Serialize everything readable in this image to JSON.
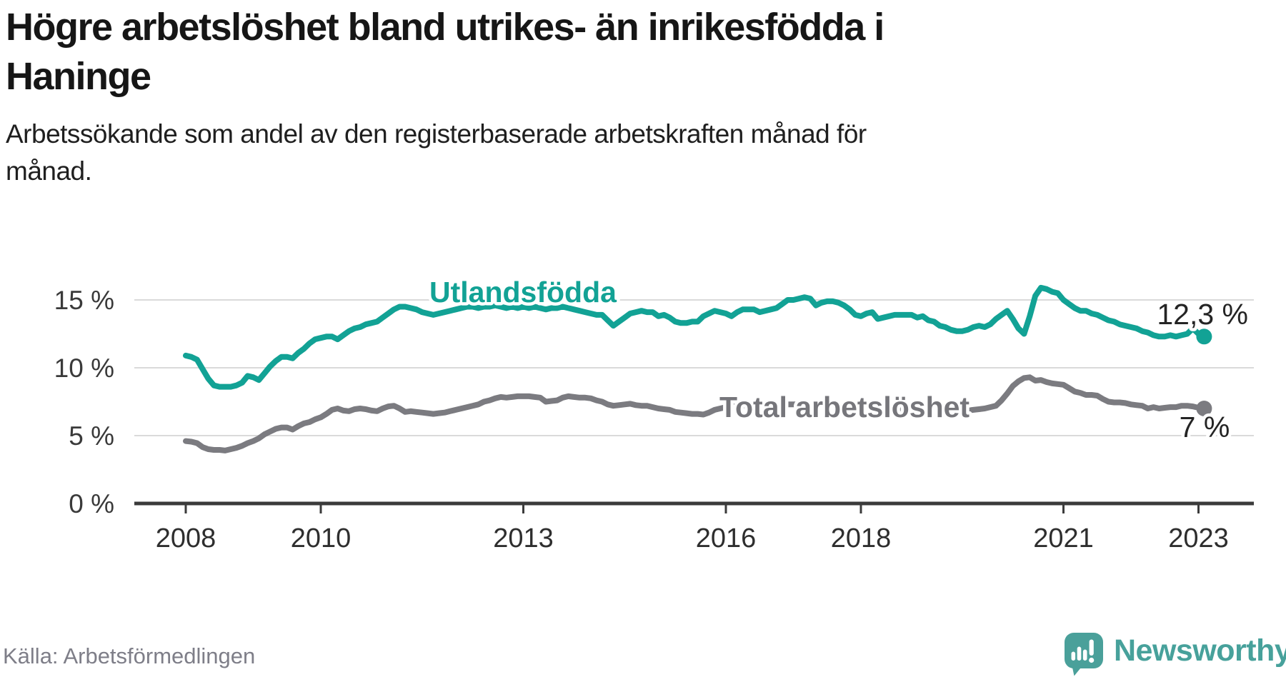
{
  "title": {
    "lines": [
      "Högre arbetslöshet bland utrikes- än inrikesfödda i",
      "Haninge"
    ]
  },
  "subtitle": {
    "lines": [
      "Arbetssökande som andel av den registerbaserade arbetskraften månad för",
      "månad."
    ]
  },
  "source": {
    "text": "Källa: Arbetsförmedlingen"
  },
  "logo": {
    "text": "Newsworthy",
    "icon": "newsworthy-speech-bubble-bar-chart-icon",
    "icon_color": "#4AA09A",
    "text_color": "#47A19B"
  },
  "colors": {
    "background": "#FFFFFF",
    "grid": "#DADADA",
    "axis": "#3B3B3B",
    "tick_text": "#2E2E2E",
    "value_label": "#242424",
    "teal": "#12A295",
    "gray": "#7B7B80",
    "source_text": "#7E7E88"
  },
  "chart_data": {
    "type": "line",
    "title": "Högre arbetslöshet bland utrikes- än inrikesfödda i Haninge",
    "subtitle": "Arbetssökande som andel av den registerbaserade arbetskraften månad för månad.",
    "unit": "%",
    "x_start_year": 2008,
    "x_step_months": 1,
    "grid": true,
    "legend_position": "inline-labels",
    "x_axis": {
      "ticks": [
        {
          "year": 2008,
          "label": "2008"
        },
        {
          "year": 2010,
          "label": "2010"
        },
        {
          "year": 2013,
          "label": "2013"
        },
        {
          "year": 2016,
          "label": "2016"
        },
        {
          "year": 2018,
          "label": "2018"
        },
        {
          "year": 2021,
          "label": "2021"
        },
        {
          "year": 2023,
          "label": "2023"
        }
      ]
    },
    "y_axis": {
      "ylim": [
        0,
        16.5
      ],
      "ticks": [
        {
          "value": 0,
          "label": "0 %"
        },
        {
          "value": 5,
          "label": "5 %"
        },
        {
          "value": 10,
          "label": "10 %"
        },
        {
          "value": 15,
          "label": "15 %"
        }
      ]
    },
    "series": [
      {
        "name": "Utlandsfödda",
        "color": "#12A295",
        "end_label": "12,3 %",
        "end_value": 12.3,
        "values": [
          10.9,
          10.8,
          10.6,
          9.9,
          9.2,
          8.7,
          8.6,
          8.6,
          8.6,
          8.7,
          8.9,
          9.4,
          9.3,
          9.1,
          9.6,
          10.1,
          10.5,
          10.8,
          10.8,
          10.7,
          11.1,
          11.4,
          11.8,
          12.1,
          12.2,
          12.3,
          12.3,
          12.1,
          12.4,
          12.7,
          12.9,
          13.0,
          13.2,
          13.3,
          13.4,
          13.7,
          14.0,
          14.3,
          14.5,
          14.5,
          14.4,
          14.3,
          14.1,
          14.0,
          13.9,
          14.0,
          14.1,
          14.2,
          14.3,
          14.4,
          14.5,
          14.5,
          14.4,
          14.5,
          14.5,
          14.6,
          14.5,
          14.4,
          14.5,
          14.4,
          14.5,
          14.4,
          14.5,
          14.4,
          14.3,
          14.4,
          14.4,
          14.5,
          14.4,
          14.3,
          14.2,
          14.1,
          14.0,
          13.9,
          13.9,
          13.5,
          13.1,
          13.4,
          13.7,
          14.0,
          14.1,
          14.2,
          14.1,
          14.1,
          13.8,
          13.9,
          13.7,
          13.4,
          13.3,
          13.3,
          13.4,
          13.4,
          13.8,
          14.0,
          14.2,
          14.1,
          14.0,
          13.8,
          14.1,
          14.3,
          14.3,
          14.3,
          14.1,
          14.2,
          14.3,
          14.4,
          14.7,
          15.0,
          15.0,
          15.1,
          15.2,
          15.1,
          14.6,
          14.8,
          14.9,
          14.9,
          14.8,
          14.6,
          14.3,
          13.9,
          13.8,
          14.0,
          14.1,
          13.6,
          13.7,
          13.8,
          13.9,
          13.9,
          13.9,
          13.9,
          13.7,
          13.8,
          13.5,
          13.4,
          13.1,
          13.0,
          12.8,
          12.7,
          12.7,
          12.8,
          13.0,
          13.1,
          13.0,
          13.2,
          13.6,
          13.9,
          14.2,
          13.6,
          12.9,
          12.5,
          13.8,
          15.3,
          15.9,
          15.8,
          15.6,
          15.5,
          15.0,
          14.7,
          14.4,
          14.2,
          14.2,
          14.0,
          13.9,
          13.7,
          13.5,
          13.4,
          13.2,
          13.1,
          13.0,
          12.9,
          12.7,
          12.6,
          12.4,
          12.3,
          12.3,
          12.4,
          12.3,
          12.4,
          12.5,
          12.9,
          12.5,
          12.3
        ]
      },
      {
        "name": "Total arbetslöshet",
        "color": "#7B7B80",
        "end_label": "7 %",
        "end_value": 7.0,
        "values": [
          4.6,
          4.55,
          4.45,
          4.15,
          4.0,
          3.95,
          3.95,
          3.9,
          4.0,
          4.1,
          4.25,
          4.45,
          4.6,
          4.8,
          5.1,
          5.3,
          5.5,
          5.6,
          5.6,
          5.45,
          5.7,
          5.9,
          6.0,
          6.2,
          6.35,
          6.6,
          6.9,
          7.0,
          6.85,
          6.8,
          6.95,
          7.0,
          6.95,
          6.85,
          6.8,
          7.0,
          7.15,
          7.2,
          7.0,
          6.75,
          6.8,
          6.75,
          6.7,
          6.65,
          6.6,
          6.65,
          6.7,
          6.8,
          6.9,
          7.0,
          7.1,
          7.2,
          7.3,
          7.5,
          7.6,
          7.75,
          7.85,
          7.8,
          7.85,
          7.9,
          7.9,
          7.9,
          7.85,
          7.8,
          7.5,
          7.55,
          7.6,
          7.8,
          7.9,
          7.85,
          7.8,
          7.8,
          7.75,
          7.6,
          7.5,
          7.3,
          7.2,
          7.25,
          7.3,
          7.35,
          7.25,
          7.2,
          7.2,
          7.1,
          7.0,
          6.95,
          6.9,
          6.75,
          6.7,
          6.65,
          6.6,
          6.6,
          6.55,
          6.7,
          6.9,
          7.0,
          7.1,
          7.2,
          7.15,
          7.25,
          7.2,
          7.2,
          7.3,
          7.35,
          7.3,
          7.3,
          7.35,
          7.3,
          7.3,
          7.3,
          7.35,
          7.35,
          7.3,
          7.3,
          7.25,
          7.25,
          7.2,
          7.2,
          7.15,
          7.1,
          7.1,
          7.1,
          7.05,
          7.05,
          7.0,
          6.95,
          6.95,
          6.9,
          6.9,
          6.85,
          6.85,
          6.8,
          6.8,
          6.75,
          6.75,
          6.7,
          6.7,
          6.75,
          6.8,
          6.85,
          6.9,
          6.95,
          7.0,
          7.1,
          7.2,
          7.6,
          8.1,
          8.65,
          9.0,
          9.25,
          9.3,
          9.05,
          9.1,
          8.95,
          8.85,
          8.8,
          8.75,
          8.5,
          8.25,
          8.15,
          8.0,
          8.0,
          7.95,
          7.7,
          7.5,
          7.45,
          7.45,
          7.4,
          7.3,
          7.25,
          7.2,
          7.0,
          7.1,
          7.0,
          7.05,
          7.1,
          7.1,
          7.2,
          7.2,
          7.15,
          7.05,
          7.0
        ]
      }
    ]
  }
}
